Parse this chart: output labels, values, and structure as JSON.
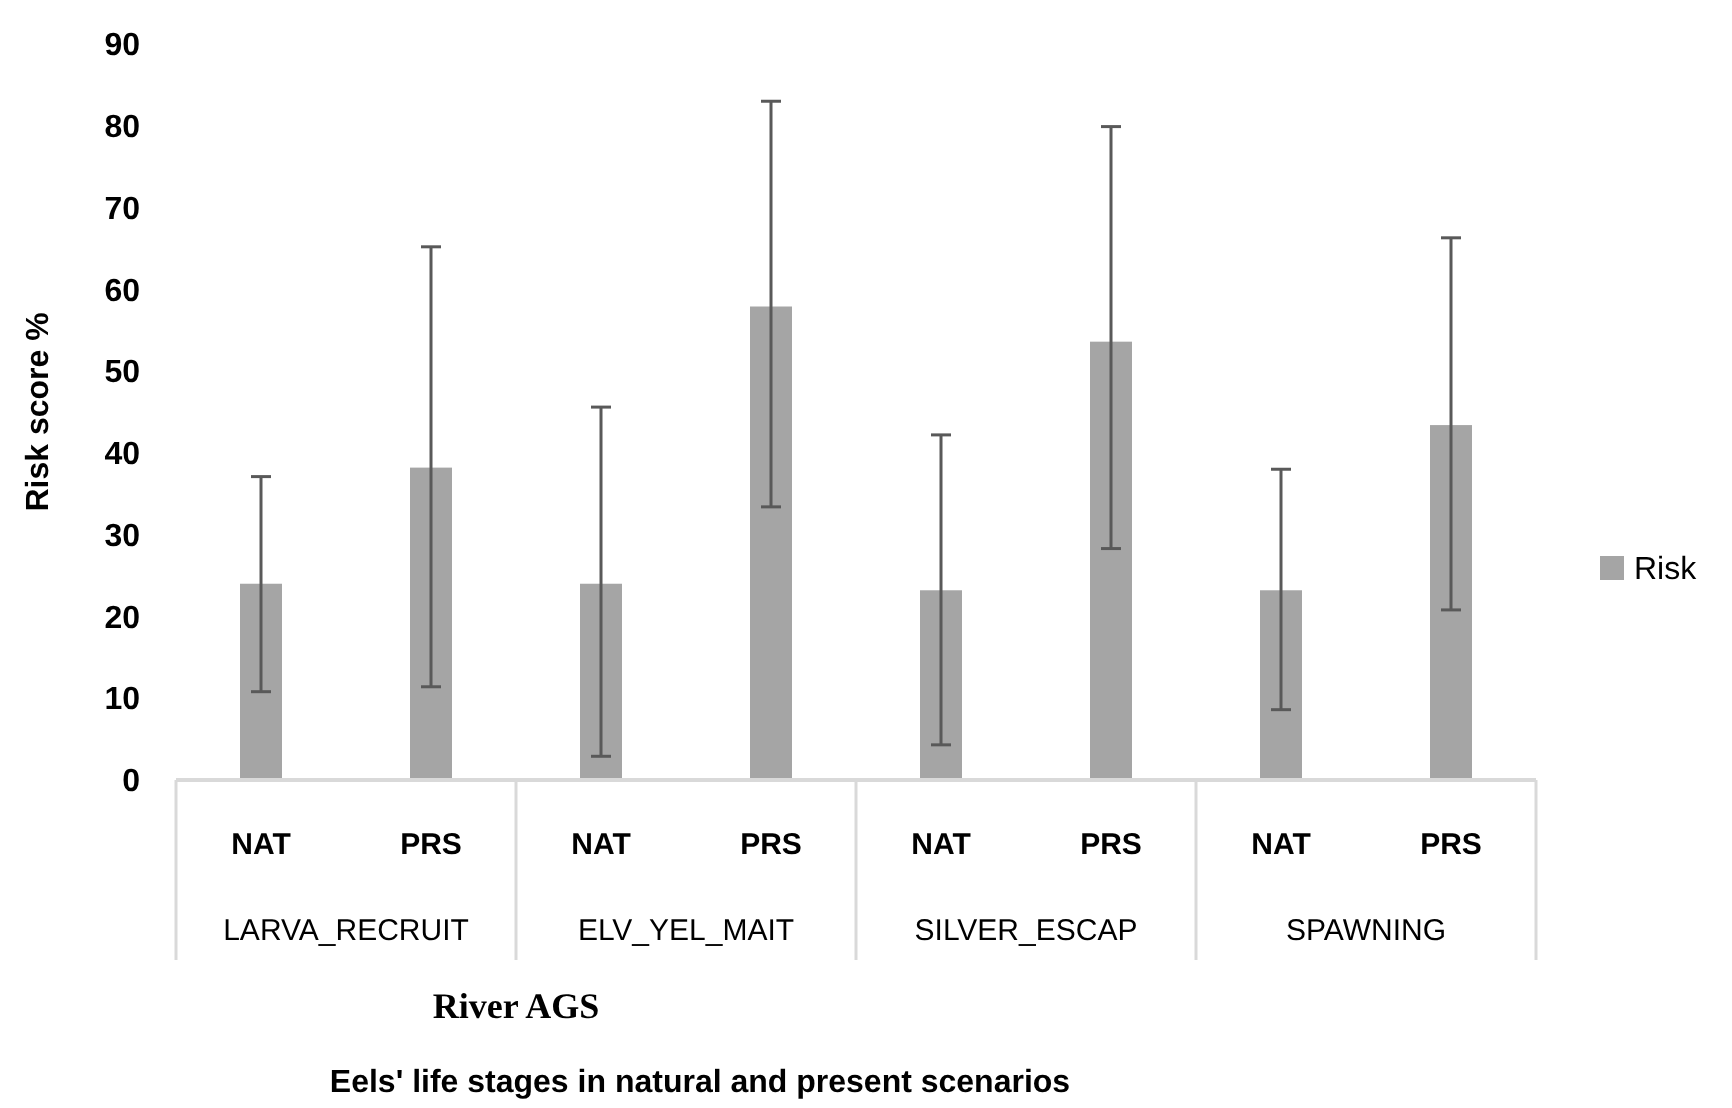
{
  "chart_data": {
    "type": "bar",
    "ylabel": "Risk score %",
    "xlabel": "River AGS",
    "categories": [
      "NAT",
      "PRS",
      "NAT",
      "PRS",
      "NAT",
      "PRS",
      "NAT",
      "PRS"
    ],
    "series": [
      {
        "name": "Risk",
        "color": "#a5a5a5",
        "values": [
          24,
          38.2,
          24,
          57.9,
          23.2,
          53.6,
          23.2,
          43.4
        ],
        "errors": [
          [
            10.8,
            37.1
          ],
          [
            11.4,
            65.2
          ],
          [
            2.9,
            45.6
          ],
          [
            33.4,
            83
          ],
          [
            4.3,
            42.2
          ],
          [
            28.3,
            79.9
          ],
          [
            8.6,
            38
          ],
          [
            20.8,
            66.3
          ]
        ]
      }
    ],
    "annotations": [
      "LARVA_RECRUIT",
      "ELV_YEL_MAIT",
      "SILVER_ESCAP",
      "SPAWNING",
      "Eels' life stages in natural and present scenarios"
    ],
    "ylim": [
      0,
      90
    ],
    "yticks": [
      0,
      10,
      20,
      30,
      40,
      50,
      60,
      70,
      80,
      90
    ],
    "grid": false,
    "legend": "right"
  }
}
